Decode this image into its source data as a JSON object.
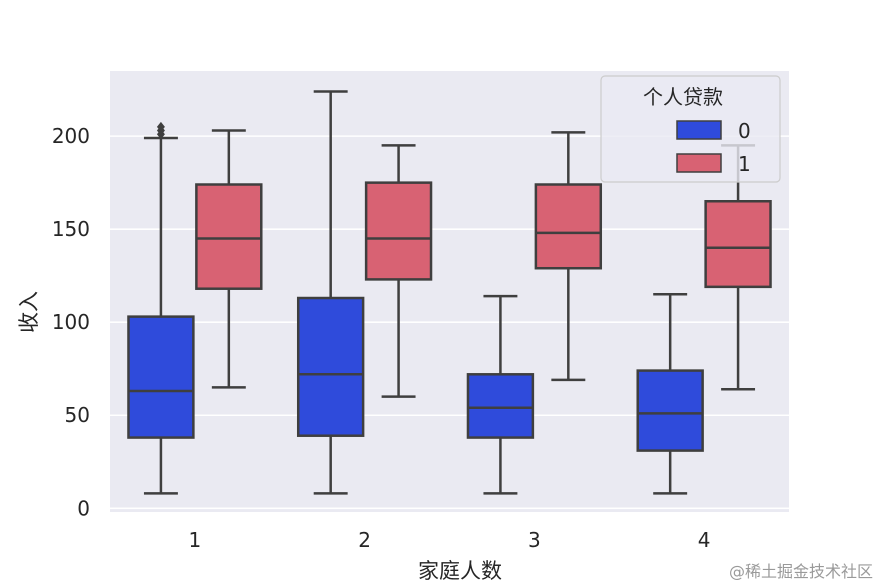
{
  "chart_data": {
    "type": "box",
    "xlabel": "家庭人数",
    "ylabel": "收入",
    "categories": [
      "1",
      "2",
      "3",
      "4"
    ],
    "yticks": [
      0,
      50,
      100,
      150,
      200
    ],
    "ylim": [
      -2,
      235
    ],
    "grid": true,
    "legend": {
      "title": "个人贷款",
      "placement": "top-right"
    },
    "series": [
      {
        "name": "0",
        "color": "#2f4bdb",
        "boxes": [
          {
            "category": "1",
            "whisker_low": 8,
            "q1": 38,
            "median": 63,
            "q3": 103,
            "whisker_high": 199,
            "outliers": [
              201,
              203,
              205
            ]
          },
          {
            "category": "2",
            "whisker_low": 8,
            "q1": 39,
            "median": 72,
            "q3": 113,
            "whisker_high": 224,
            "outliers": []
          },
          {
            "category": "3",
            "whisker_low": 8,
            "q1": 38,
            "median": 54,
            "q3": 72,
            "whisker_high": 114,
            "outliers": []
          },
          {
            "category": "4",
            "whisker_low": 8,
            "q1": 31,
            "median": 51,
            "q3": 74,
            "whisker_high": 115,
            "outliers": []
          }
        ]
      },
      {
        "name": "1",
        "color": "#d86273",
        "boxes": [
          {
            "category": "1",
            "whisker_low": 65,
            "q1": 118,
            "median": 145,
            "q3": 174,
            "whisker_high": 203,
            "outliers": []
          },
          {
            "category": "2",
            "whisker_low": 60,
            "q1": 123,
            "median": 145,
            "q3": 175,
            "whisker_high": 195,
            "outliers": []
          },
          {
            "category": "3",
            "whisker_low": 69,
            "q1": 129,
            "median": 148,
            "q3": 174,
            "whisker_high": 202,
            "outliers": []
          },
          {
            "category": "4",
            "whisker_low": 64,
            "q1": 119,
            "median": 140,
            "q3": 165,
            "whisker_high": 195,
            "outliers": []
          }
        ]
      }
    ]
  },
  "watermark": "@稀土掘金技术社区"
}
